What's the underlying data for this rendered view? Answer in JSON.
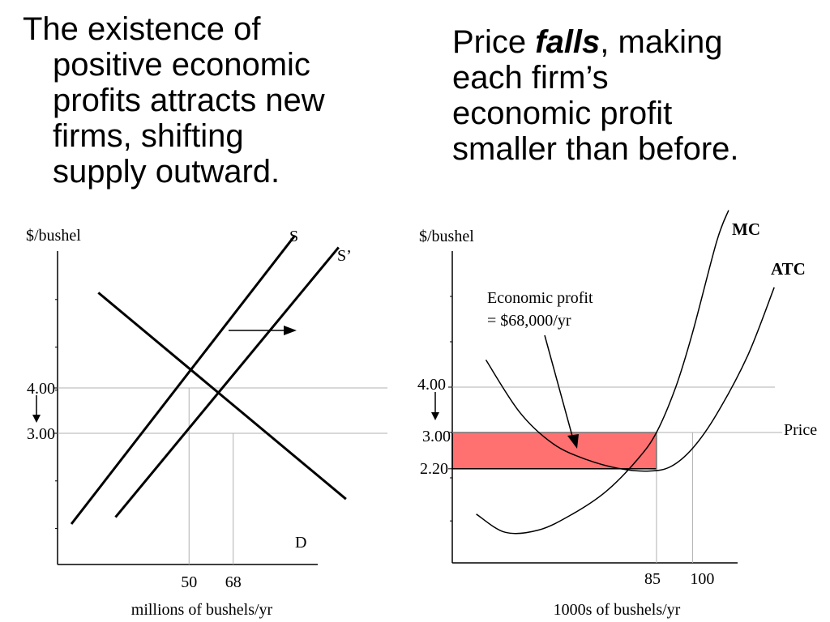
{
  "slide": {
    "left_text": {
      "line1": "The existence of",
      "line2": "positive economic",
      "line3": "profits attracts new",
      "line4": "firms, shifting",
      "line5": "supply outward."
    },
    "right_text": {
      "line1_prefix": "Price ",
      "line1_emphasis": "falls",
      "line1_suffix": ", making",
      "line2": "each firm’s",
      "line3": "economic profit",
      "line4": "smaller than before."
    }
  },
  "colors": {
    "profit_fill": "#ff7070",
    "gridline": "#b0b0b0",
    "ink": "#000000"
  },
  "chart_data": [
    {
      "type": "line",
      "title": "",
      "ylabel": "$/bushel",
      "xlabel": "millions of bushels/yr",
      "x_ticks": [
        50,
        68
      ],
      "x_tick_labels": [
        "50",
        "68"
      ],
      "y_ticks": [
        4.0,
        3.0
      ],
      "y_tick_labels": [
        "4.00",
        "3.00"
      ],
      "price_change_arrow": "down",
      "shift_arrow": "S to S'",
      "series": [
        {
          "name": "S",
          "x": [
            2,
            93
          ],
          "y": [
            1.0,
            7.35
          ]
        },
        {
          "name": "S’",
          "x": [
            20,
            111
          ],
          "y": [
            1.15,
            7.1
          ]
        },
        {
          "name": "D",
          "x": [
            13,
            114
          ],
          "y": [
            6.1,
            1.55
          ]
        }
      ],
      "equilibria": [
        {
          "x": 50,
          "y": 4.0
        },
        {
          "x": 68,
          "y": 3.0
        }
      ]
    },
    {
      "type": "line",
      "title": "",
      "ylabel": "$/bushel",
      "xlabel": "1000s of bushels/yr",
      "x_ticks": [
        85,
        100
      ],
      "x_tick_labels": [
        "85",
        "100"
      ],
      "y_ticks": [
        4.0,
        3.0,
        2.2
      ],
      "y_tick_labels": [
        "4.00",
        "3.00",
        "2.20"
      ],
      "price_change_arrow": "down",
      "price_line_label": "Price",
      "annotation": {
        "line1": "Economic profit",
        "line2": "= $68,000/yr"
      },
      "profit_rectangle": {
        "x": [
          0,
          85
        ],
        "y": [
          2.2,
          3.0
        ]
      },
      "series": [
        {
          "name": "MC",
          "x": [
            10,
            22,
            36,
            50,
            64,
            77,
            85,
            93,
            100,
            110,
            115
          ],
          "y": [
            1.2,
            0.8,
            0.85,
            1.2,
            1.7,
            2.4,
            3.0,
            4.0,
            5.2,
            7.2,
            7.9
          ]
        },
        {
          "name": "ATC",
          "x": [
            14,
            28,
            42,
            56,
            70,
            82,
            91,
            100,
            110,
            123,
            134
          ],
          "y": [
            4.6,
            3.45,
            2.75,
            2.4,
            2.2,
            2.15,
            2.25,
            2.65,
            3.4,
            4.7,
            6.2
          ]
        }
      ]
    }
  ]
}
